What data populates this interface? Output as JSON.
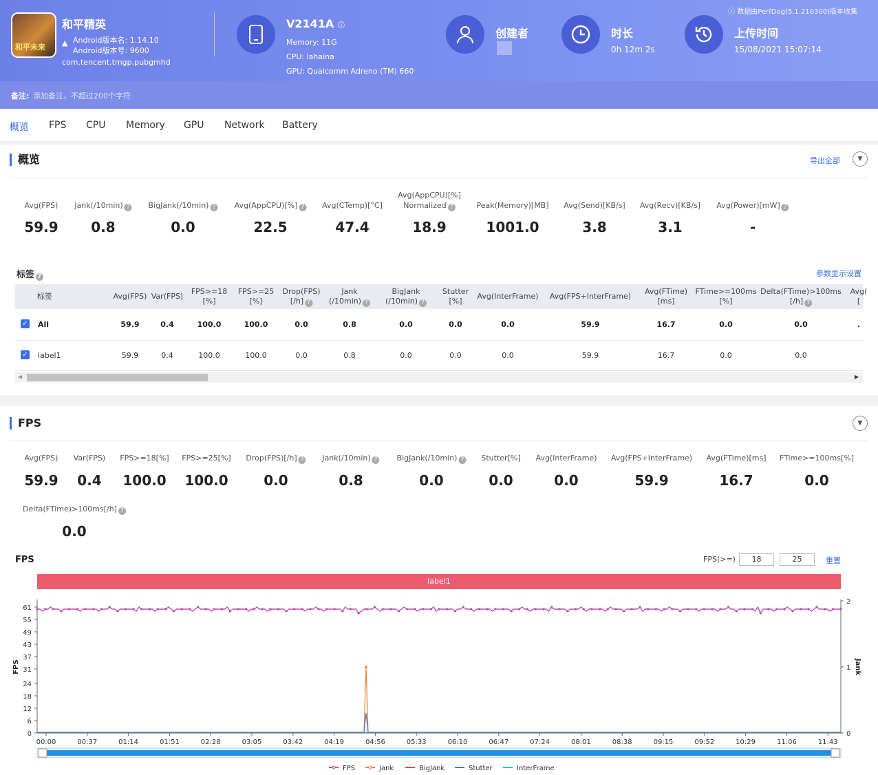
{
  "header": {
    "source_note": "数据由PerfDog(5.1.210300)版本收集",
    "app": {
      "name": "和平精英",
      "version_name": "Android版本名: 1.14.10",
      "version_code": "Android版本号: 9600",
      "package": "com.tencent.tmgp.pubgmhd",
      "icon_text": "和平未来"
    },
    "device": {
      "model": "V2141A",
      "memory": "Memory: 11G",
      "cpu": "CPU: lahaina",
      "gpu": "GPU: Qualcomm Adreno (TM) 660"
    },
    "creator": {
      "label": "创建者"
    },
    "duration": {
      "label": "时长",
      "value": "0h 12m 2s"
    },
    "upload": {
      "label": "上传时间",
      "value": "15/08/2021 15:07:14"
    }
  },
  "note": {
    "label": "备注:",
    "placeholder": "添加备注，不超过200个字符"
  },
  "tabs": [
    "概览",
    "FPS",
    "CPU",
    "Memory",
    "GPU",
    "Network",
    "Battery"
  ],
  "overview": {
    "title": "概览",
    "export": "导出全部",
    "metrics": [
      {
        "label": "Avg(FPS)",
        "value": "59.9"
      },
      {
        "label": "Jank(/10min)",
        "value": "0.8"
      },
      {
        "label": "BigJank(/10min)",
        "value": "0.0"
      },
      {
        "label": "Avg(AppCPU)[%]",
        "value": "22.5"
      },
      {
        "label": "Avg(CTemp)[°C]",
        "value": "47.4"
      },
      {
        "label": "Avg(AppCPU)[%]",
        "label2": "Normalized",
        "value": "18.9"
      },
      {
        "label": "Peak(Memory)[MB]",
        "value": "1001.0"
      },
      {
        "label": "Avg(Send)[KB/s]",
        "value": "3.8"
      },
      {
        "label": "Avg(Recv)[KB/s]",
        "value": "3.1"
      },
      {
        "label": "Avg(Power)[mW]",
        "value": "-"
      }
    ],
    "labels_title": "标签",
    "param_settings": "参数显示设置",
    "table": {
      "headers": [
        {
          "l1": "标签"
        },
        {
          "l1": "Avg(FPS)"
        },
        {
          "l1": "Var(FPS)"
        },
        {
          "l1": "FPS>=18",
          "l2": "[%]"
        },
        {
          "l1": "FPS>=25",
          "l2": "[%]"
        },
        {
          "l1": "Drop(FPS)",
          "l2": "[/h]"
        },
        {
          "l1": "Jank",
          "l2": "(/10min)"
        },
        {
          "l1": "BigJank",
          "l2": "(/10min)"
        },
        {
          "l1": "Stutter",
          "l2": "[%]"
        },
        {
          "l1": "Avg(InterFrame)"
        },
        {
          "l1": "Avg(FPS+InterFrame)"
        },
        {
          "l1": "Avg(FTime)",
          "l2": "[ms]"
        },
        {
          "l1": "FTime>=100ms",
          "l2": "[%]"
        },
        {
          "l1": "Delta(FTime)>100ms",
          "l2": "[/h]"
        },
        {
          "l1": "Avg(",
          "l2": "["
        }
      ],
      "rows": [
        {
          "bold": true,
          "cells": [
            "All",
            "59.9",
            "0.4",
            "100.0",
            "100.0",
            "0.0",
            "0.8",
            "0.0",
            "0.0",
            "0.0",
            "59.9",
            "16.7",
            "0.0",
            "0.0",
            "."
          ]
        },
        {
          "bold": false,
          "cells": [
            "label1",
            "59.9",
            "0.4",
            "100.0",
            "100.0",
            "0.0",
            "0.8",
            "0.0",
            "0.0",
            "0.0",
            "59.9",
            "16.7",
            "0.0",
            "0.0",
            ""
          ]
        }
      ]
    }
  },
  "fps": {
    "title": "FPS",
    "metrics": [
      {
        "label": "Avg(FPS)",
        "value": "59.9"
      },
      {
        "label": "Var(FPS)",
        "value": "0.4"
      },
      {
        "label": "FPS>=18[%]",
        "value": "100.0"
      },
      {
        "label": "FPS>=25[%]",
        "value": "100.0"
      },
      {
        "label": "Drop(FPS)[/h]",
        "value": "0.0"
      },
      {
        "label": "Jank(/10min)",
        "value": "0.8"
      },
      {
        "label": "BigJank(/10min)",
        "value": "0.0"
      },
      {
        "label": "Stutter[%]",
        "value": "0.0"
      },
      {
        "label": "Avg(InterFrame)",
        "value": "0.0"
      },
      {
        "label": "Avg(FPS+InterFrame)",
        "value": "59.9"
      },
      {
        "label": "Avg(FTime)[ms]",
        "value": "16.7"
      },
      {
        "label": "FTime>=100ms[%]",
        "value": "0.0"
      }
    ],
    "metric_extra": {
      "label": "Delta(FTime)>100ms[/h]",
      "value": "0.0"
    },
    "chart_label": "FPS",
    "threshold_label": "FPS(>=)",
    "threshold1": "18",
    "threshold2": "25",
    "reset": "重置",
    "label_band": "label1"
  },
  "chart_data": {
    "type": "line",
    "title": "FPS",
    "ylabel": "FPS",
    "y2label": "Jank",
    "yticks": [
      0,
      6,
      12,
      18,
      24,
      31,
      37,
      43,
      49,
      55,
      61
    ],
    "y2ticks": [
      0,
      1,
      2
    ],
    "ylim": [
      0,
      64
    ],
    "y2lim": [
      0,
      2
    ],
    "xticks": [
      "00:00",
      "00:37",
      "01:14",
      "01:51",
      "02:28",
      "03:05",
      "03:42",
      "04:19",
      "04:56",
      "05:33",
      "06:10",
      "06:47",
      "07:24",
      "08:01",
      "08:38",
      "09:15",
      "09:52",
      "10:29",
      "11:06",
      "11:43"
    ],
    "x_range_seconds": [
      0,
      722
    ],
    "series": [
      {
        "name": "FPS",
        "color": "#c04bb0",
        "baseline": 60,
        "dips": [
          [
            145,
            58
          ],
          [
            151,
            57
          ],
          [
            302,
            58
          ],
          [
            306,
            56
          ],
          [
            480,
            58
          ],
          [
            575,
            58
          ],
          [
            1080,
            58
          ],
          [
            1182,
            56
          ]
        ]
      },
      {
        "name": "Jank",
        "color": "#f07f34",
        "spikes": [
          [
            296,
            1
          ]
        ]
      },
      {
        "name": "BigJank",
        "color": "#e04848",
        "spikes": []
      },
      {
        "name": "Stutter",
        "color": "#3c7be0",
        "spikes": [
          [
            296,
            0.3
          ]
        ]
      },
      {
        "name": "InterFrame",
        "color": "#36c4c4",
        "spikes": []
      }
    ],
    "legend_position": "bottom"
  }
}
